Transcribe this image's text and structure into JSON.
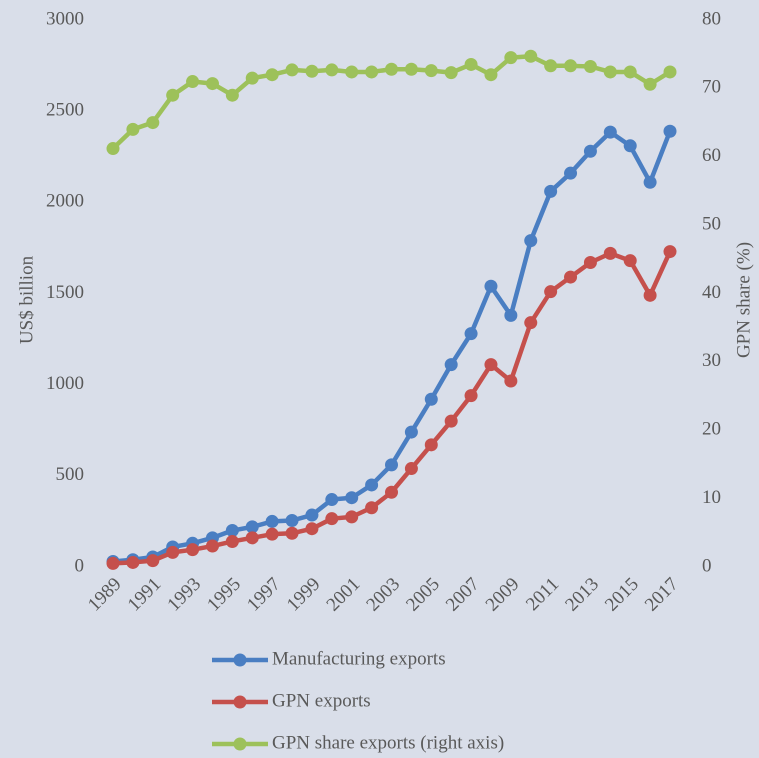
{
  "chart_data": {
    "type": "line",
    "categories": [
      "1989",
      null,
      "1991",
      null,
      "1993",
      null,
      "1995",
      null,
      "1997",
      null,
      "1999",
      null,
      "2001",
      null,
      "2003",
      null,
      "2005",
      null,
      "2007",
      null,
      "2009",
      null,
      "2011",
      null,
      "2013",
      null,
      "2015",
      null,
      "2017"
    ],
    "series": [
      {
        "name": "Manufacturing exports",
        "color": "#4a7ec2",
        "values": [
          30,
          40,
          55,
          110,
          130,
          160,
          200,
          220,
          250,
          255,
          285,
          370,
          380,
          450,
          560,
          740,
          920,
          1110,
          1280,
          1540,
          1380,
          1790,
          2060,
          2160,
          2280,
          2385,
          2310,
          2110,
          2390
        ]
      },
      {
        "name": "GPN exports",
        "color": "#c5504c",
        "values": [
          20,
          25,
          35,
          80,
          95,
          115,
          140,
          160,
          180,
          185,
          210,
          265,
          275,
          325,
          410,
          540,
          670,
          800,
          940,
          1110,
          1020,
          1340,
          1510,
          1590,
          1670,
          1720,
          1680,
          1490,
          1730
        ]
      },
      {
        "name": "GPN share exports (right axis)",
        "color": "#9dc15a",
        "axis": "y2",
        "values": [
          61.2,
          64,
          65,
          69,
          71,
          70.7,
          69,
          71.5,
          72,
          72.7,
          72.5,
          72.7,
          72.4,
          72.4,
          72.8,
          72.8,
          72.6,
          72.3,
          73.5,
          72,
          74.5,
          74.7,
          73.3,
          73.3,
          73.2,
          72.4,
          72.4,
          70.6,
          72.4
        ]
      }
    ],
    "ylabel": "US$ billion",
    "y2label": "GPN share (%)",
    "ylim": [
      0,
      3000
    ],
    "yticks": [
      0,
      500,
      1000,
      1500,
      2000,
      2500,
      3000
    ],
    "y2lim": [
      0,
      80
    ],
    "y2ticks": [
      0,
      10,
      20,
      30,
      40,
      50,
      60,
      70,
      80
    ],
    "grid": false,
    "legend": "bottom"
  }
}
